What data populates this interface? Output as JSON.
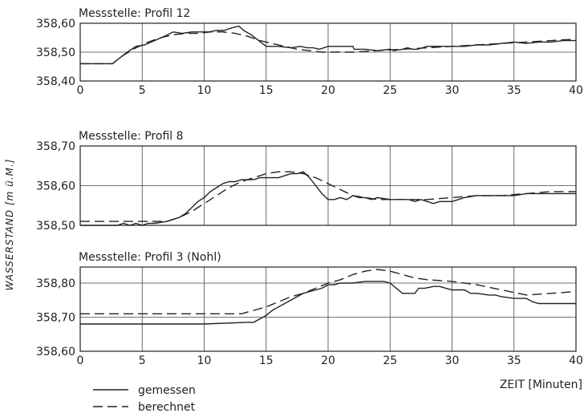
{
  "chart_data": {
    "type": "line",
    "ylabel": "WASSERSTAND [m ü.M.]",
    "xlabel": "ZEIT [Minuten]",
    "legend": [
      {
        "name": "gemessen",
        "style": "solid"
      },
      {
        "name": "berechnet",
        "style": "dashed"
      }
    ],
    "panels": [
      {
        "title": "Messstelle: Profil 12",
        "xlim": [
          0,
          40
        ],
        "ylim": [
          358.4,
          358.6
        ],
        "xticks": [
          0,
          5,
          10,
          15,
          20,
          25,
          30,
          35,
          40
        ],
        "yticks": [
          358.4,
          358.5,
          358.6
        ],
        "ytick_labels": [
          "358,40",
          "358,50",
          "358,60"
        ],
        "series": [
          {
            "name": "gemessen",
            "x": [
              0,
              2.6,
              3.2,
              3.8,
              4.5,
              5.2,
              6.0,
              6.8,
              7.5,
              8.2,
              9.0,
              9.6,
              10.4,
              11.0,
              11.6,
              12.3,
              12.8,
              13.2,
              13.8,
              14.4,
              15.0,
              16.0,
              17.0,
              17.8,
              18.3,
              18.8,
              19.3,
              20.0,
              21.0,
              22.0,
              22.1,
              23.0,
              24.0,
              25.0,
              25.3,
              26.0,
              26.4,
              26.8,
              27.2,
              28.0,
              29.0,
              30.0,
              31.0,
              32.0,
              33.0,
              34.0,
              35.0,
              36.0,
              37.0,
              38.0,
              39.0,
              40.0
            ],
            "y": [
              358.46,
              358.46,
              358.48,
              358.5,
              358.52,
              358.525,
              358.54,
              358.555,
              358.57,
              358.565,
              358.57,
              358.57,
              358.57,
              358.575,
              358.575,
              358.585,
              358.59,
              358.575,
              358.56,
              358.54,
              358.52,
              358.52,
              358.515,
              358.52,
              358.515,
              358.515,
              358.51,
              358.52,
              358.52,
              358.52,
              358.51,
              358.51,
              358.505,
              358.51,
              358.505,
              358.51,
              358.515,
              358.51,
              358.51,
              358.52,
              358.52,
              358.52,
              358.52,
              358.525,
              358.525,
              358.53,
              358.535,
              358.53,
              358.535,
              358.535,
              358.54,
              358.54
            ]
          },
          {
            "name": "berechnet",
            "x": [
              0,
              2.6,
              3.5,
              4.5,
              5.5,
              6.5,
              7.5,
              8.5,
              9.5,
              10.5,
              11.5,
              12.5,
              13.5,
              14.5,
              15.5,
              16.5,
              17.5,
              18.5,
              19.5,
              20.5,
              22.0,
              24.0,
              26.0,
              28.0,
              30.0,
              32.0,
              34.0,
              36.0,
              38.0,
              40.0
            ],
            "y": [
              358.46,
              358.46,
              358.49,
              358.515,
              358.535,
              358.55,
              358.56,
              358.565,
              358.565,
              358.57,
              358.57,
              358.565,
              358.555,
              358.54,
              358.53,
              358.52,
              358.51,
              358.505,
              358.5,
              358.5,
              358.5,
              358.505,
              358.51,
              358.515,
              358.52,
              358.525,
              358.53,
              358.535,
              358.54,
              358.545
            ]
          }
        ]
      },
      {
        "title": "Messstelle: Profil 8",
        "xlim": [
          0,
          40
        ],
        "ylim": [
          358.5,
          358.7
        ],
        "xticks": [
          0,
          5,
          10,
          15,
          20,
          25,
          30,
          35,
          40
        ],
        "yticks": [
          358.5,
          358.6,
          358.7
        ],
        "ytick_labels": [
          "358,50",
          "358,60",
          "358,70"
        ],
        "series": [
          {
            "name": "gemessen",
            "x": [
              0,
              3.0,
              3.5,
              4.0,
              4.5,
              5.0,
              5.5,
              6.0,
              7.0,
              7.5,
              8.0,
              8.5,
              9.0,
              9.5,
              10.0,
              10.5,
              11.0,
              11.5,
              12.0,
              12.5,
              13.0,
              13.5,
              14.0,
              14.5,
              15.0,
              16.0,
              17.0,
              17.5,
              18.0,
              18.5,
              19.0,
              19.5,
              20.0,
              20.5,
              21.0,
              21.5,
              22.0,
              22.5,
              23.0,
              23.5,
              24.0,
              25.0,
              26.0,
              26.5,
              27.0,
              27.5,
              28.0,
              28.5,
              29.0,
              30.0,
              31.0,
              32.0,
              33.0,
              34.0,
              35.0,
              36.0,
              37.0,
              38.0,
              39.0,
              40.0
            ],
            "y": [
              358.5,
              358.5,
              358.505,
              358.5,
              358.505,
              358.5,
              358.505,
              358.505,
              358.51,
              358.515,
              358.52,
              358.53,
              358.545,
              358.56,
              358.57,
              358.585,
              358.595,
              358.605,
              358.61,
              358.61,
              358.615,
              358.615,
              358.615,
              358.62,
              358.62,
              358.62,
              358.63,
              358.63,
              358.635,
              358.62,
              358.6,
              358.58,
              358.565,
              358.565,
              358.57,
              358.565,
              358.575,
              358.57,
              358.57,
              358.565,
              358.57,
              358.565,
              358.565,
              358.565,
              358.56,
              358.565,
              358.56,
              358.555,
              358.56,
              358.56,
              358.57,
              358.575,
              358.575,
              358.575,
              358.575,
              358.58,
              358.58,
              358.58,
              358.58,
              358.58
            ]
          },
          {
            "name": "berechnet",
            "x": [
              0,
              3.0,
              4.0,
              5.0,
              6.0,
              7.0,
              8.0,
              9.0,
              10.0,
              11.0,
              12.0,
              13.0,
              14.0,
              15.0,
              16.0,
              17.0,
              18.0,
              19.0,
              20.0,
              21.0,
              22.0,
              24.0,
              26.0,
              28.0,
              30.0,
              32.0,
              34.0,
              36.0,
              38.0,
              40.0
            ],
            "y": [
              358.51,
              358.51,
              358.51,
              358.51,
              358.51,
              358.51,
              358.52,
              358.535,
              358.555,
              358.575,
              358.595,
              358.61,
              358.62,
              358.63,
              358.635,
              358.635,
              358.63,
              358.62,
              358.605,
              358.59,
              358.575,
              358.565,
              358.565,
              358.565,
              358.57,
              358.575,
              358.575,
              358.58,
              358.585,
              358.585
            ]
          }
        ]
      },
      {
        "title": "Messstelle: Profil 3 (Nohl)",
        "xlim": [
          0,
          40
        ],
        "ylim": [
          358.6,
          358.85
        ],
        "xticks": [
          0,
          5,
          10,
          15,
          20,
          25,
          30,
          35,
          40
        ],
        "yticks": [
          358.6,
          358.7,
          358.8
        ],
        "ytick_labels": [
          "358,60",
          "358,70",
          "358,80"
        ],
        "series": [
          {
            "name": "gemessen",
            "x": [
              0,
              5,
              10,
              13.5,
              14.0,
              14.5,
              15.0,
              15.5,
              16.0,
              16.5,
              17.0,
              17.5,
              18.0,
              18.5,
              19.0,
              19.5,
              20.0,
              20.5,
              21.0,
              22.0,
              23.0,
              24.0,
              24.5,
              25.0,
              25.5,
              26.0,
              27.0,
              27.3,
              27.8,
              28.5,
              29.0,
              29.5,
              30.0,
              31.0,
              31.5,
              32.0,
              33.0,
              33.5,
              34.0,
              35.0,
              36.0,
              36.5,
              37.0,
              38.0,
              40.0
            ],
            "y": [
              358.68,
              358.68,
              358.68,
              358.685,
              358.685,
              358.695,
              358.705,
              358.72,
              358.73,
              358.74,
              358.75,
              358.76,
              358.77,
              358.775,
              358.78,
              358.785,
              358.795,
              358.795,
              358.8,
              358.8,
              358.805,
              358.805,
              358.805,
              358.8,
              358.785,
              358.77,
              358.77,
              358.785,
              358.785,
              358.79,
              358.79,
              358.785,
              358.78,
              358.78,
              358.77,
              358.77,
              358.765,
              358.765,
              358.76,
              358.755,
              358.755,
              358.745,
              358.74,
              358.74,
              358.74
            ]
          },
          {
            "name": "berechnet",
            "x": [
              0,
              5,
              10,
              13.0,
              14.0,
              15.0,
              16.0,
              17.0,
              18.0,
              19.0,
              20.0,
              21.0,
              22.0,
              23.0,
              24.0,
              25.0,
              26.0,
              27.0,
              28.0,
              30.0,
              32.0,
              34.0,
              36.0,
              38.0,
              40.0
            ],
            "y": [
              358.71,
              358.71,
              358.71,
              358.71,
              358.72,
              358.73,
              358.745,
              358.76,
              358.77,
              358.785,
              358.8,
              358.81,
              358.825,
              358.835,
              358.84,
              358.835,
              358.825,
              358.815,
              358.81,
              358.805,
              358.795,
              358.78,
              358.765,
              358.77,
              358.775
            ]
          }
        ]
      }
    ]
  }
}
